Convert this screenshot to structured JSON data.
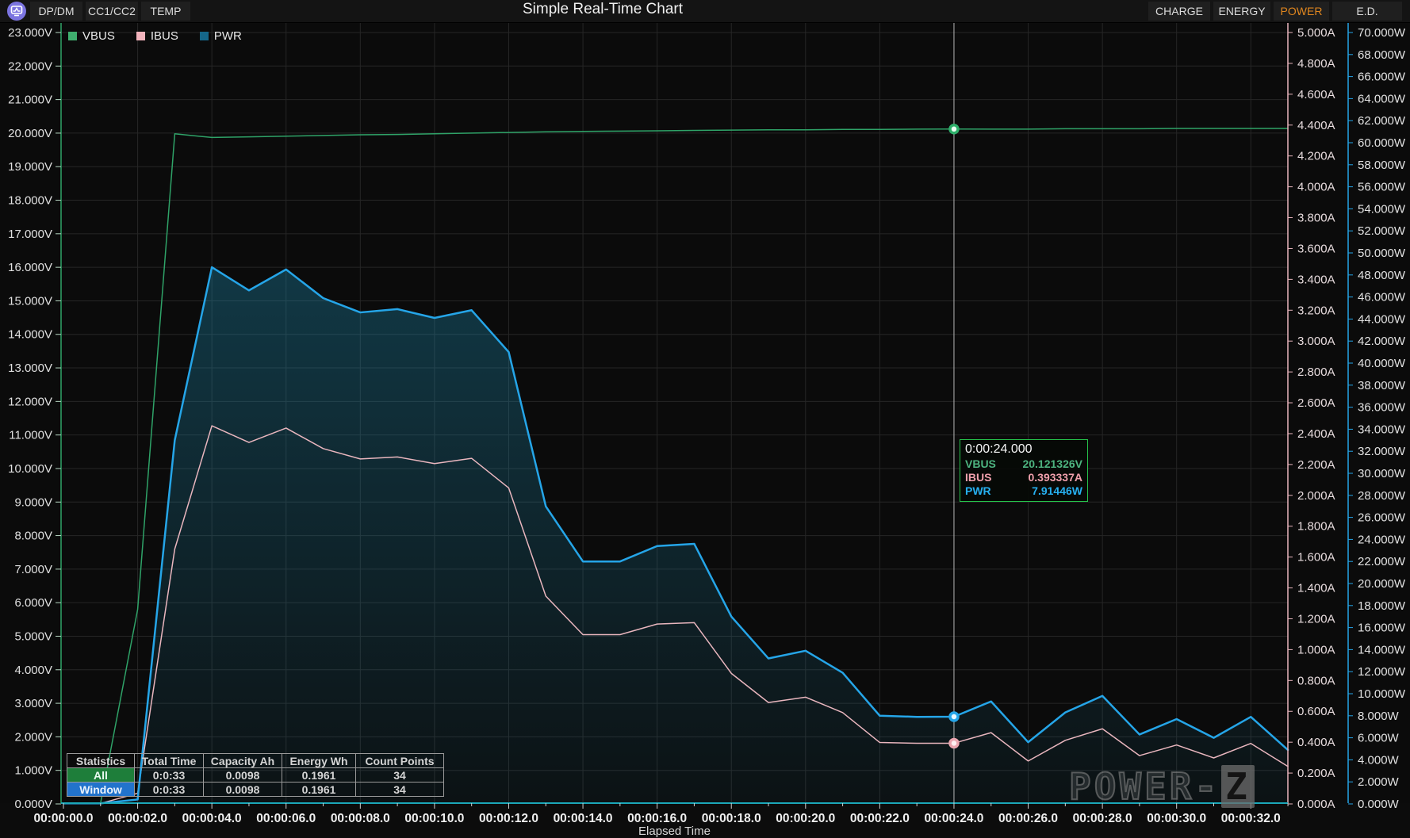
{
  "topbar": {
    "left_tabs": [
      {
        "label": "DP/DM"
      },
      {
        "label": "CC1/CC2"
      },
      {
        "label": "TEMP"
      }
    ],
    "title": "Simple Real-Time Chart",
    "right_tabs": [
      {
        "label": "CHARGE"
      },
      {
        "label": "ENERGY"
      },
      {
        "label": "POWER",
        "active": true
      },
      {
        "label": "E.D."
      }
    ],
    "active_tab_color": "#e0861f",
    "icon": "pulse-chart-icon",
    "icon_bg": "#7b74e0"
  },
  "legend": [
    {
      "label": "VBUS",
      "color": "#3fae6e"
    },
    {
      "label": "IBUS",
      "color": "#f2b3bc"
    },
    {
      "label": "PWR",
      "color": "#15678a"
    }
  ],
  "tooltip": {
    "time": "0:00:24.000",
    "border_color": "#25c24b",
    "rows": [
      {
        "label": "VBUS",
        "value": "20.121326V",
        "color": "#4db380"
      },
      {
        "label": "IBUS",
        "value": "0.393337A",
        "color": "#f0a0ac"
      },
      {
        "label": "PWR",
        "value": "7.91446W",
        "color": "#27b0f0"
      }
    ]
  },
  "stats_table": {
    "headers": [
      "Statistics",
      "Total Time",
      "Capacity Ah",
      "Energy Wh",
      "Count Points"
    ],
    "rows": [
      {
        "name": "All",
        "name_bg": "#1e7e3a",
        "total_time": "0:0:33",
        "capacity_ah": "0.0098",
        "energy_wh": "0.1961",
        "count_points": "34"
      },
      {
        "name": "Window",
        "name_bg": "#2273cc",
        "total_time": "0:0:33",
        "capacity_ah": "0.0098",
        "energy_wh": "0.1961",
        "count_points": "34"
      }
    ]
  },
  "watermark": {
    "text": "POWER-",
    "z": "Z"
  },
  "chart_data": {
    "type": "line",
    "title": "Simple Real-Time Chart",
    "xlabel": "Elapsed Time",
    "x_tick_format": "00:00:SS.0",
    "x_seconds": [
      0,
      1,
      2,
      3,
      4,
      5,
      6,
      7,
      8,
      9,
      10,
      11,
      12,
      13,
      14,
      15,
      16,
      17,
      18,
      19,
      20,
      21,
      22,
      23,
      24,
      25,
      26,
      27,
      28,
      29,
      30,
      31,
      32,
      33
    ],
    "axes": {
      "voltage": {
        "side": "left",
        "min": 0,
        "max": 23,
        "step": 1,
        "unit": "V",
        "decimals": 3,
        "line_color": "#2fa368",
        "label_color": "#e0e0e0"
      },
      "current": {
        "side": "right",
        "min": 0,
        "max": 5,
        "step": 0.2,
        "unit": "A",
        "decimals": 3,
        "line_color": "#e9b6be",
        "label_color": "#e8dcde"
      },
      "power": {
        "side": "right-outer",
        "min": 0,
        "max": 70,
        "step": 2,
        "unit": "W",
        "decimals": 3,
        "line_color": "#25a5e8",
        "label_color": "#e2e2e2"
      },
      "time": {
        "min": 0,
        "max": 33,
        "label_step": 2,
        "grid_step": 2,
        "line_color": "#1ba7b8",
        "label_color": "#f0f0f0"
      }
    },
    "series": [
      {
        "name": "VBUS",
        "unit": "V",
        "axis": "voltage",
        "color": "#2fa368",
        "width": 1.5,
        "values": [
          0.02,
          0.02,
          5.8,
          19.98,
          19.87,
          19.89,
          19.91,
          19.93,
          19.95,
          19.96,
          19.98,
          20.0,
          20.02,
          20.04,
          20.05,
          20.06,
          20.07,
          20.08,
          20.09,
          20.1,
          20.1,
          20.11,
          20.11,
          20.12,
          20.121326,
          20.12,
          20.12,
          20.13,
          20.13,
          20.13,
          20.14,
          20.14,
          20.14,
          20.14
        ]
      },
      {
        "name": "IBUS",
        "unit": "A",
        "axis": "current",
        "color": "#e9b6be",
        "width": 1.5,
        "values": [
          0.003,
          0.003,
          0.069,
          1.652,
          2.451,
          2.343,
          2.436,
          2.303,
          2.236,
          2.249,
          2.206,
          2.24,
          2.048,
          1.347,
          1.097,
          1.097,
          1.166,
          1.175,
          0.846,
          0.657,
          0.692,
          0.592,
          0.398,
          0.393,
          0.393337,
          0.462,
          0.278,
          0.412,
          0.487,
          0.313,
          0.382,
          0.298,
          0.392,
          0.243
        ]
      },
      {
        "name": "PWR",
        "unit": "W",
        "axis": "power",
        "color": "#25a5e8",
        "width": 2.5,
        "fill": true,
        "fill_color": "#1e96be",
        "values": [
          0.05,
          0.05,
          0.4,
          33.0,
          48.7,
          46.6,
          48.5,
          45.9,
          44.6,
          44.9,
          44.1,
          44.8,
          41.0,
          27.0,
          22.0,
          22.0,
          23.4,
          23.6,
          17.0,
          13.2,
          13.9,
          11.9,
          8.0,
          7.9,
          7.91446,
          9.3,
          5.6,
          8.3,
          9.8,
          6.3,
          7.7,
          6.0,
          7.9,
          4.9
        ]
      }
    ],
    "cursor": {
      "t": 24,
      "vbus": 20.121326,
      "ibus": 0.393337,
      "pwr": 7.91446,
      "line_color": "#d0d0d0"
    },
    "grid": {
      "on": true,
      "color": "#262626"
    },
    "legend_position": "top-left"
  }
}
